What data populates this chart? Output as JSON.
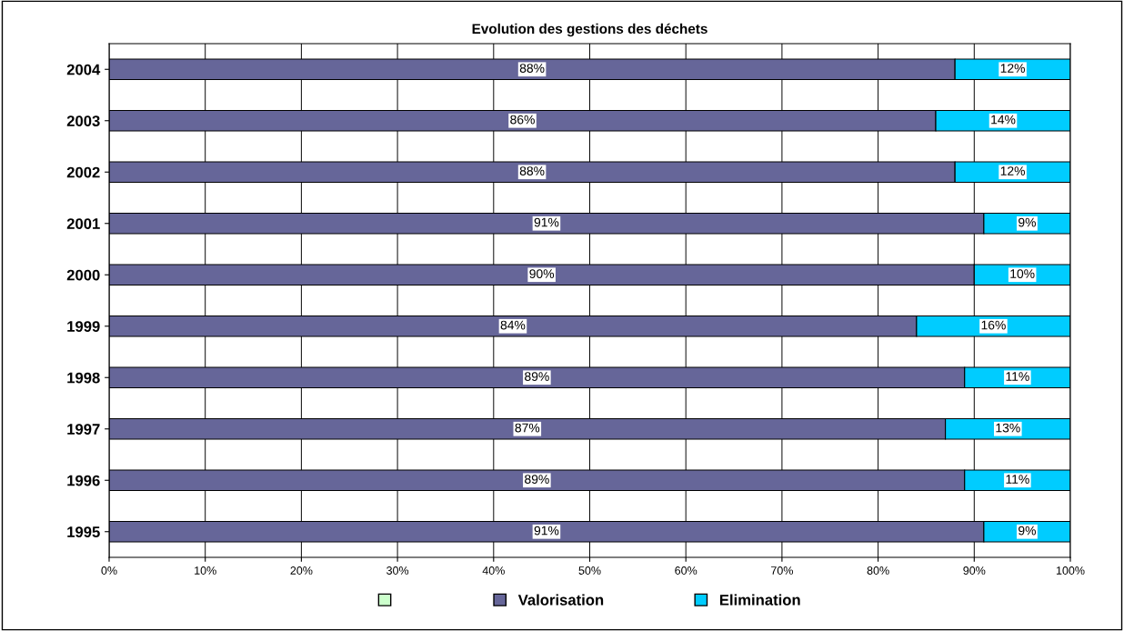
{
  "chart_data": {
    "type": "bar",
    "orientation": "horizontal",
    "stacked": true,
    "title": "Evolution des gestions des déchets",
    "categories": [
      "2004",
      "2003",
      "2002",
      "2001",
      "2000",
      "1999",
      "1998",
      "1997",
      "1996",
      "1995"
    ],
    "series": [
      {
        "color": "#ccffcc",
        "values": [
          null,
          null,
          null,
          null,
          null,
          null,
          null,
          null,
          null,
          null
        ]
      },
      {
        "name": "Valorisation",
        "color": "#666699",
        "values": [
          88,
          86,
          88,
          91,
          90,
          84,
          89,
          87,
          89,
          91
        ],
        "value_labels": [
          "88%",
          "86%",
          "88%",
          "91%",
          "90%",
          "84%",
          "89%",
          "87%",
          "89%",
          "91%"
        ]
      },
      {
        "name": "Elimination",
        "color": "#00ccff",
        "values": [
          12,
          14,
          12,
          9,
          10,
          16,
          11,
          13,
          11,
          9
        ],
        "value_labels": [
          "12%",
          "14%",
          "12%",
          "9%",
          "10%",
          "16%",
          "11%",
          "13%",
          "11%",
          "9%"
        ]
      }
    ],
    "xlim": [
      0,
      100
    ],
    "xticks": [
      {
        "value": 0,
        "label": "0%"
      },
      {
        "value": 10,
        "label": "10%"
      },
      {
        "value": 20,
        "label": "20%"
      },
      {
        "value": 30,
        "label": "30%"
      },
      {
        "value": 40,
        "label": "40%"
      },
      {
        "value": 50,
        "label": "50%"
      },
      {
        "value": 60,
        "label": "60%"
      },
      {
        "value": 70,
        "label": "70%"
      },
      {
        "value": 80,
        "label": "80%"
      },
      {
        "value": 90,
        "label": "90%"
      },
      {
        "value": 100,
        "label": "100%"
      }
    ],
    "grid": "x",
    "legend": "bottom"
  }
}
